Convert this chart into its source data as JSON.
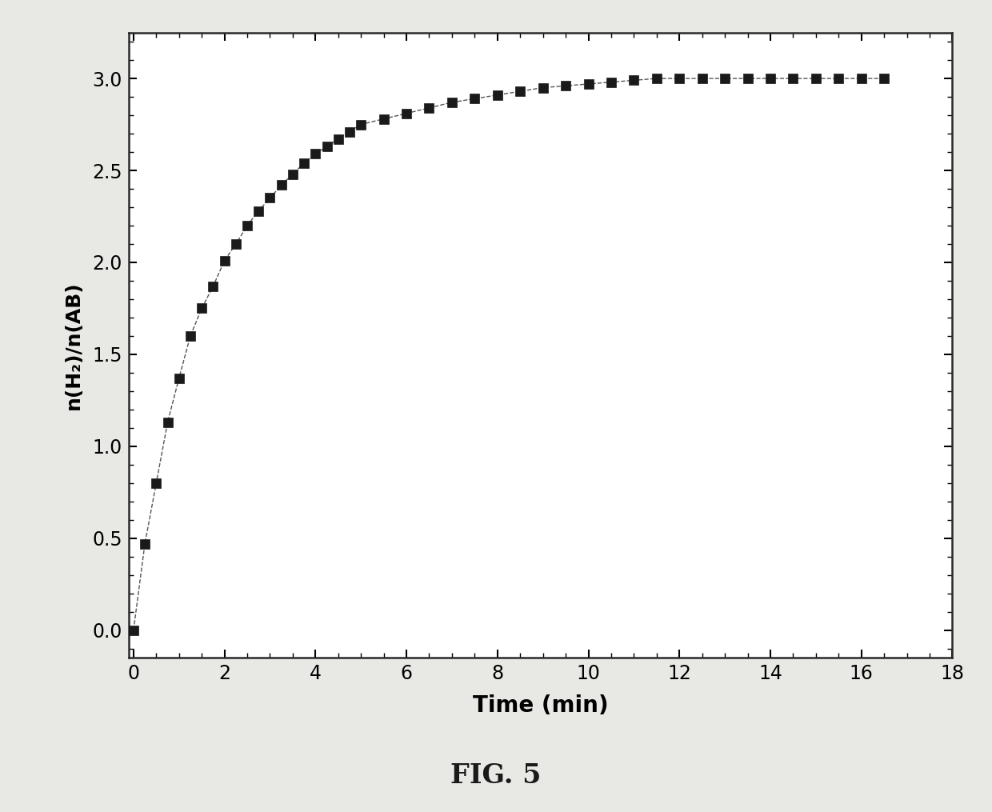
{
  "x": [
    0,
    0.25,
    0.5,
    0.75,
    1.0,
    1.25,
    1.5,
    1.75,
    2.0,
    2.25,
    2.5,
    2.75,
    3.0,
    3.25,
    3.5,
    3.75,
    4.0,
    4.25,
    4.5,
    4.75,
    5.0,
    5.5,
    6.0,
    6.5,
    7.0,
    7.5,
    8.0,
    8.5,
    9.0,
    9.5,
    10.0,
    10.5,
    11.0,
    11.5,
    12.0,
    12.5,
    13.0,
    13.5,
    14.0,
    14.5,
    15.0,
    15.5,
    16.0,
    16.5
  ],
  "y": [
    0.0,
    0.47,
    0.8,
    1.13,
    1.37,
    1.6,
    1.75,
    1.87,
    2.01,
    2.1,
    2.2,
    2.28,
    2.35,
    2.42,
    2.48,
    2.54,
    2.59,
    2.63,
    2.67,
    2.71,
    2.75,
    2.78,
    2.81,
    2.84,
    2.87,
    2.89,
    2.91,
    2.93,
    2.95,
    2.96,
    2.97,
    2.98,
    2.99,
    3.0,
    3.0,
    3.0,
    3.0,
    3.0,
    3.0,
    3.0,
    3.0,
    3.0,
    3.0,
    3.0
  ],
  "xlabel": "Time (min)",
  "ylabel": "n(H₂)/n(AB)",
  "fig_label": "FIG. 5",
  "xlim": [
    -0.1,
    18
  ],
  "ylim": [
    -0.15,
    3.25
  ],
  "xticks": [
    0,
    2,
    4,
    6,
    8,
    10,
    12,
    14,
    16,
    18
  ],
  "yticks": [
    0.0,
    0.5,
    1.0,
    1.5,
    2.0,
    2.5,
    3.0
  ],
  "marker": "s",
  "marker_color": "#1a1a1a",
  "marker_size": 8,
  "line_style": "--",
  "line_color": "#555555",
  "line_width": 1.0,
  "background_color": "#e8e8e4",
  "xlabel_fontsize": 20,
  "ylabel_fontsize": 18,
  "tick_fontsize": 17,
  "fig_label_fontsize": 24,
  "axis_linewidth": 1.8
}
